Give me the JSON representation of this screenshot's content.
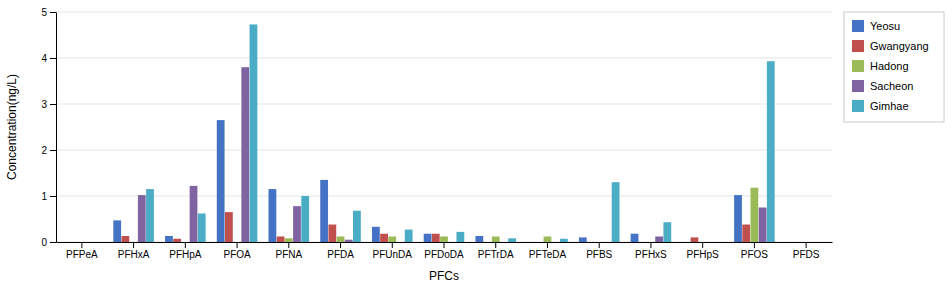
{
  "chart_data": {
    "type": "bar",
    "categories": [
      "PFPeA",
      "PFHxA",
      "PFHpA",
      "PFOA",
      "PFNA",
      "PFDA",
      "PFUnDA",
      "PFDoDA",
      "PFTrDA",
      "PFTeDA",
      "PFBS",
      "PFHxS",
      "PFHpS",
      "PFOS",
      "PFDS"
    ],
    "series": [
      {
        "name": "Yeosu",
        "color": "#4472C4",
        "values": [
          0.0,
          0.47,
          0.13,
          2.65,
          1.15,
          1.35,
          0.33,
          0.18,
          0.13,
          0.0,
          0.1,
          0.18,
          0.0,
          1.02,
          0.0
        ]
      },
      {
        "name": "Gwangyang",
        "color": "#C0504D",
        "values": [
          0.0,
          0.13,
          0.07,
          0.65,
          0.12,
          0.38,
          0.18,
          0.18,
          0.0,
          0.0,
          0.0,
          0.0,
          0.1,
          0.38,
          0.0
        ]
      },
      {
        "name": "Hadong",
        "color": "#9BBB59",
        "values": [
          0.0,
          0.0,
          0.0,
          0.0,
          0.08,
          0.12,
          0.12,
          0.12,
          0.12,
          0.12,
          0.0,
          0.0,
          0.0,
          1.18,
          0.0
        ]
      },
      {
        "name": "Sacheon",
        "color": "#8064A2",
        "values": [
          0.0,
          1.02,
          1.22,
          3.8,
          0.78,
          0.05,
          0.0,
          0.0,
          0.0,
          0.0,
          0.0,
          0.12,
          0.0,
          0.75,
          0.0
        ]
      },
      {
        "name": "Gimhae",
        "color": "#4BACC6",
        "values": [
          0.0,
          1.15,
          0.62,
          4.73,
          1.0,
          0.68,
          0.27,
          0.22,
          0.08,
          0.07,
          1.3,
          0.43,
          0.0,
          3.93,
          0.0
        ]
      }
    ],
    "xlabel": "PFCs",
    "ylabel": "Concentration(ng/L)",
    "ylim": [
      0,
      5
    ],
    "yticks": [
      0,
      1,
      2,
      3,
      4,
      5
    ],
    "grid": true,
    "legend": "right"
  }
}
